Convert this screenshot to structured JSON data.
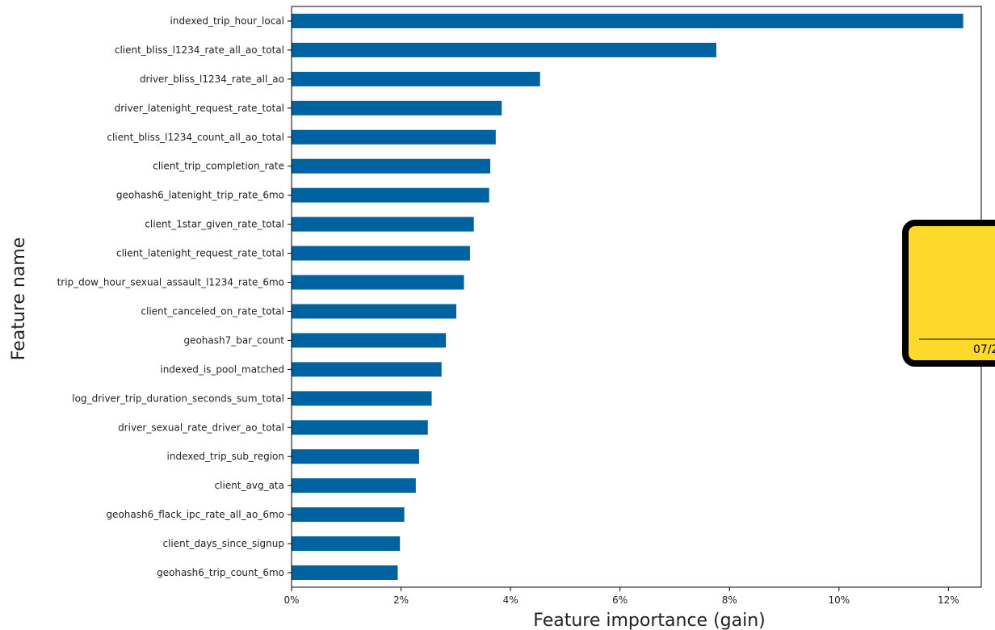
{
  "colors": {
    "bar": "#0063a1",
    "axis": "#000000",
    "overlay_fill": "#fcd92a",
    "overlay_border": "#000000"
  },
  "chart_data": {
    "type": "bar",
    "orientation": "horizontal",
    "title": "",
    "xlabel": "Feature importance (gain)",
    "ylabel": "Feature name",
    "xlim": [
      0,
      12.6
    ],
    "x_ticks": [
      0,
      2,
      4,
      6,
      8,
      10,
      12
    ],
    "x_tick_labels": [
      "0%",
      "2%",
      "4%",
      "6%",
      "8%",
      "10%",
      "12%"
    ],
    "grid": false,
    "legend": "none",
    "categories": [
      "indexed_trip_hour_local",
      "client_bliss_l1234_rate_all_ao_total",
      "driver_bliss_l1234_rate_all_ao",
      "driver_latenight_request_rate_total",
      "client_bliss_l1234_count_all_ao_total",
      "client_trip_completion_rate",
      "geohash6_latenight_trip_rate_6mo",
      "client_1star_given_rate_total",
      "client_latenight_request_rate_total",
      "trip_dow_hour_sexual_assault_l1234_rate_6mo",
      "client_canceled_on_rate_total",
      "geohash7_bar_count",
      "indexed_is_pool_matched",
      "log_driver_trip_duration_seconds_sum_total",
      "driver_sexual_rate_driver_ao_total",
      "indexed_trip_sub_region",
      "client_avg_ata",
      "geohash6_flack_ipc_rate_all_ao_6mo",
      "client_days_since_signup",
      "geohash6_trip_count_6mo"
    ],
    "values": [
      12.27,
      7.76,
      4.54,
      3.84,
      3.73,
      3.63,
      3.61,
      3.33,
      3.26,
      3.15,
      3.01,
      2.82,
      2.74,
      2.56,
      2.49,
      2.33,
      2.27,
      2.06,
      1.98,
      1.94
    ]
  },
  "overlay": {
    "date_text": "07/2"
  }
}
